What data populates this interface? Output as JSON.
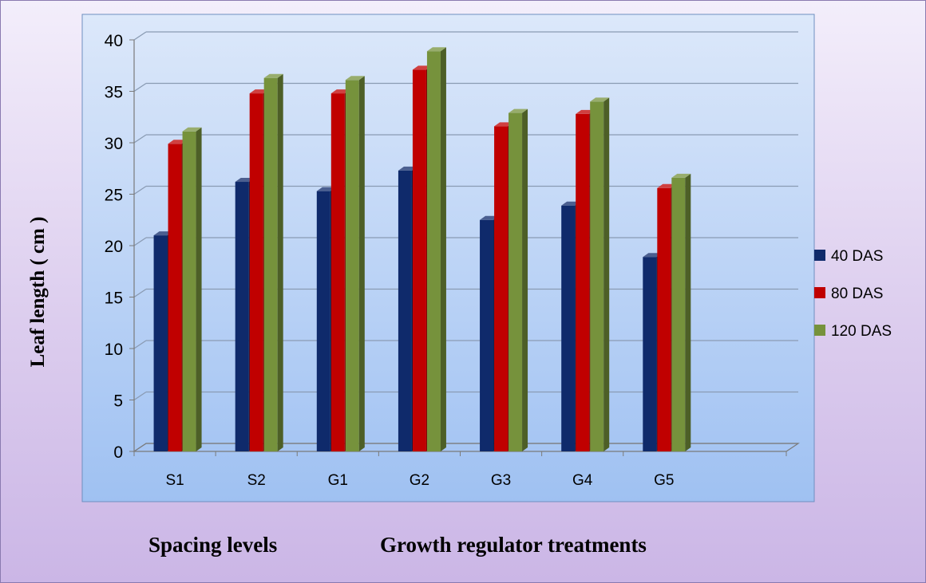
{
  "chart_data": {
    "type": "bar",
    "ylabel": "Leaf length ( cm )",
    "x_titles": [
      "Spacing levels",
      "Growth regulator treatments"
    ],
    "categories": [
      "S1",
      "S2",
      "G1",
      "G2",
      "G3",
      "G4",
      "G5"
    ],
    "ylim": [
      0,
      40
    ],
    "yticks": [
      0,
      5,
      10,
      15,
      20,
      25,
      30,
      35,
      40
    ],
    "grid": true,
    "legend_position": "right",
    "series": [
      {
        "name": "40 DAS",
        "color": "#0f2a6b",
        "values": [
          21.0,
          26.2,
          25.3,
          27.3,
          22.5,
          23.9,
          18.9
        ]
      },
      {
        "name": "80 DAS",
        "color": "#c00000",
        "values": [
          29.9,
          34.8,
          34.8,
          37.1,
          31.6,
          32.8,
          25.6
        ]
      },
      {
        "name": "120 DAS",
        "color": "#76923c",
        "values": [
          31.1,
          36.3,
          36.1,
          38.9,
          32.9,
          34.0,
          26.6
        ]
      }
    ]
  }
}
